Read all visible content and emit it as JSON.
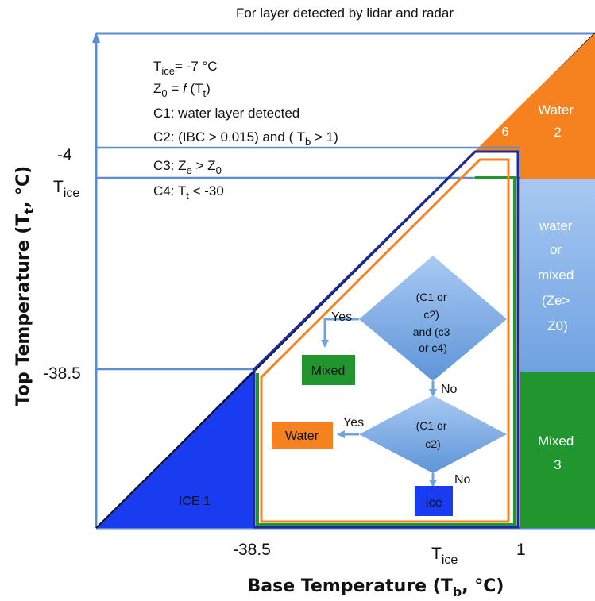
{
  "header": {
    "title": "For layer detected by lidar and radar"
  },
  "axes": {
    "y_title": {
      "main": "Top Temperature (T",
      "sub": "t",
      "tail": ", °C)"
    },
    "x_title": {
      "main": "Base Temperature (T",
      "sub": "b",
      "tail": ", °C)"
    },
    "y_ticks": {
      "minus4": "-4",
      "tice_main": "T",
      "tice_sub": "ice",
      "minus385": "-38.5"
    },
    "x_ticks": {
      "minus385": "-38.5",
      "tice_main": "T",
      "tice_sub": "ice",
      "one": "1"
    }
  },
  "conditions": {
    "line1": {
      "a": "T",
      "sub": "ice",
      "b": "=  -7 °C"
    },
    "line2": {
      "a": "Z",
      "sub": "0",
      "b": " = ",
      "f": "f",
      "c": " (T",
      "sub2": "t",
      "d": ")"
    },
    "line3": "C1: water layer detected",
    "line4": {
      "a": "C2: (IBC > 0.015) and ( T",
      "sub": "b",
      "b": " > 1)"
    },
    "line5": {
      "a": "C3: Z",
      "sub": "e",
      "b": " > Z",
      "sub2": "0"
    },
    "line6": {
      "a": "C4: T",
      "sub": "t",
      "b": " < -30"
    }
  },
  "regions": {
    "ice1": "ICE 1",
    "six": "6",
    "water2": [
      "Water",
      "2"
    ],
    "water_or_mixed": [
      "water",
      "or",
      "mixed",
      "(Ze>",
      "Z0)"
    ],
    "mixed3": [
      "Mixed",
      "3"
    ]
  },
  "decision": {
    "d1": [
      "(C1 or",
      "c2)",
      "and (c3",
      "or c4)"
    ],
    "d2": [
      "(C1 or",
      "c2)"
    ],
    "yes1": "Yes",
    "yes2": "Yes",
    "no1": "No",
    "no2": "No"
  },
  "outcomes": {
    "mixed": "Mixed",
    "water": "Water",
    "ice": "Ice"
  },
  "colors": {
    "axis_blue": "#5b8ed0",
    "ice_blue": "#1a3cf0",
    "orange": "#f5821f",
    "green": "#22962e",
    "light_blue": "#7fb0ea",
    "diamond": "#6fa3de",
    "navy": "#1c2aa0"
  }
}
